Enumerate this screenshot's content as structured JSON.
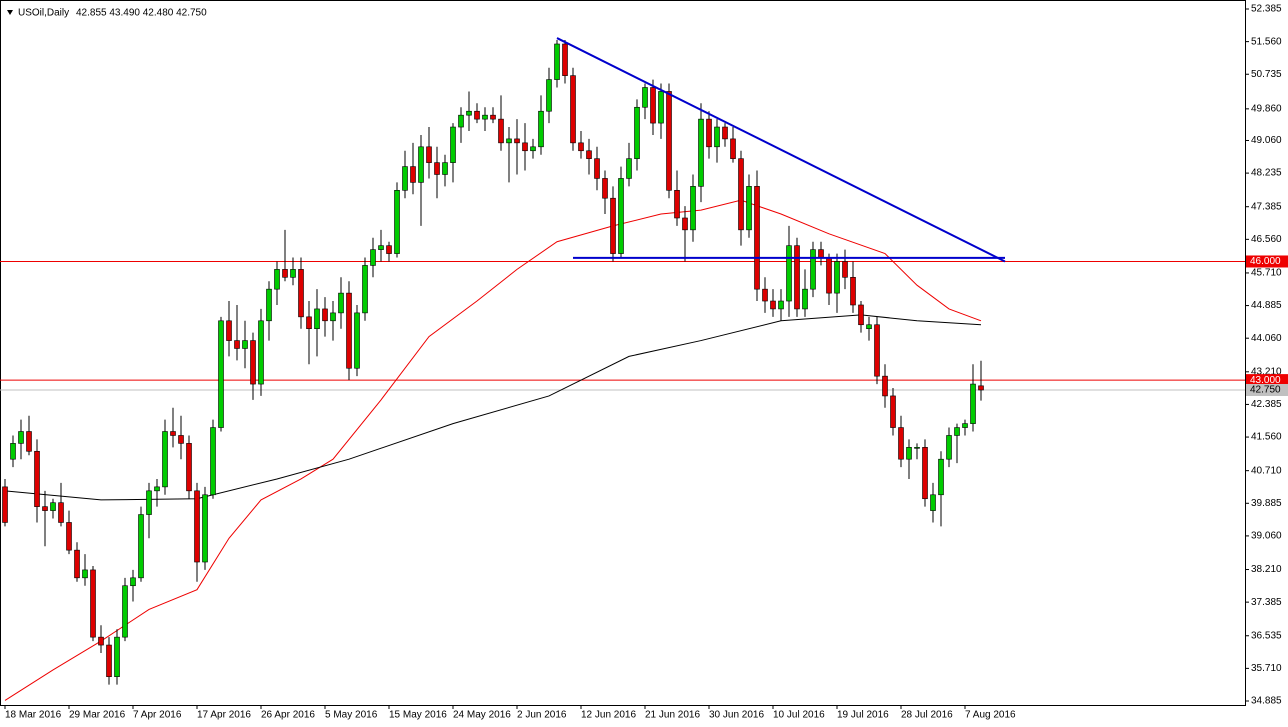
{
  "chart_data": {
    "type": "candlestick",
    "header": {
      "symbol": "USOil,Daily",
      "quote": "42.855 43.490 42.480 42.750"
    },
    "categories": [
      "18 Mar 2016",
      null,
      null,
      null,
      null,
      null,
      null,
      null,
      "29 Mar 2016",
      null,
      null,
      null,
      null,
      null,
      null,
      null,
      "7 Apr 2016",
      null,
      null,
      null,
      null,
      null,
      null,
      null,
      "17 Apr 2016",
      null,
      null,
      null,
      null,
      null,
      null,
      null,
      "26 Apr 2016",
      null,
      null,
      null,
      null,
      null,
      null,
      null,
      "5 May 2016",
      null,
      null,
      null,
      null,
      null,
      null,
      null,
      "15 May 2016",
      null,
      null,
      null,
      null,
      null,
      null,
      null,
      "24 May 2016",
      null,
      null,
      null,
      null,
      null,
      null,
      null,
      "2 Jun 2016",
      null,
      null,
      null,
      null,
      null,
      null,
      null,
      "12 Jun 2016",
      null,
      null,
      null,
      null,
      null,
      null,
      null,
      "21 Jun 2016",
      null,
      null,
      null,
      null,
      null,
      null,
      null,
      "30 Jun 2016",
      null,
      null,
      null,
      null,
      null,
      null,
      null,
      "10 Jul 2016",
      null,
      null,
      null,
      null,
      null,
      null,
      null,
      "19 Jul 2016",
      null,
      null,
      null,
      null,
      null,
      null,
      null,
      "28 Jul 2016",
      null,
      null,
      null,
      null,
      null,
      null,
      null,
      "7 Aug 2016",
      null,
      null
    ],
    "open": [
      40.3,
      41.0,
      41.4,
      41.7,
      41.2,
      39.8,
      39.7,
      39.9,
      39.4,
      38.7,
      38.0,
      38.2,
      36.5,
      36.3,
      35.5,
      36.5,
      37.8,
      38.0,
      39.6,
      40.2,
      40.3,
      41.7,
      41.6,
      41.4,
      40.2,
      38.4,
      40.1,
      41.8,
      44.5,
      44.0,
      43.8,
      44.0,
      42.9,
      44.5,
      45.3,
      45.8,
      45.6,
      45.8,
      44.6,
      44.3,
      44.8,
      44.5,
      44.7,
      45.2,
      43.3,
      44.7,
      45.9,
      46.3,
      46.4,
      46.2,
      47.8,
      48.4,
      48.0,
      48.9,
      48.5,
      48.2,
      48.5,
      49.4,
      49.7,
      49.8,
      49.6,
      49.7,
      49.6,
      49.0,
      49.1,
      49.0,
      48.8,
      48.9,
      49.8,
      50.6,
      51.5,
      50.7,
      49.0,
      48.8,
      48.6,
      48.1,
      47.6,
      46.2,
      48.1,
      48.6,
      49.9,
      50.4,
      49.5,
      50.3,
      47.8,
      47.1,
      46.8,
      47.9,
      49.6,
      48.9,
      49.4,
      49.1,
      48.6,
      46.8,
      47.9,
      45.3,
      45.0,
      44.8,
      45.0,
      46.4,
      44.8,
      45.3,
      46.3,
      46.1,
      45.2,
      46.0,
      45.6,
      44.9,
      44.3,
      44.4,
      43.1,
      42.6,
      41.8,
      41.0,
      41.3,
      41.3,
      39.7,
      40.1,
      41.0,
      41.6,
      41.8,
      41.9,
      42.855
    ],
    "high": [
      40.5,
      41.6,
      42.0,
      42.1,
      41.5,
      40.2,
      40.0,
      40.4,
      39.7,
      38.9,
      38.6,
      38.3,
      36.8,
      36.5,
      36.7,
      38.0,
      38.2,
      39.8,
      40.4,
      40.5,
      42.0,
      42.3,
      42.1,
      41.6,
      40.4,
      40.3,
      42.0,
      44.6,
      45.0,
      44.9,
      44.5,
      44.2,
      44.8,
      45.5,
      46.0,
      46.8,
      46.1,
      46.1,
      45.0,
      45.3,
      45.1,
      45.0,
      45.6,
      45.5,
      44.9,
      46.1,
      46.6,
      46.8,
      46.5,
      48.0,
      48.8,
      49.0,
      49.2,
      49.4,
      48.9,
      48.7,
      49.5,
      49.9,
      50.3,
      50.0,
      49.9,
      49.9,
      50.2,
      49.4,
      49.6,
      49.5,
      49.1,
      50.2,
      50.9,
      51.6,
      51.6,
      50.9,
      49.3,
      49.1,
      48.9,
      48.3,
      47.9,
      48.4,
      49.0,
      50.1,
      50.5,
      50.6,
      50.5,
      50.5,
      48.3,
      47.4,
      48.2,
      50.0,
      49.8,
      49.6,
      49.5,
      49.4,
      48.8,
      48.2,
      48.3,
      45.6,
      45.3,
      45.3,
      46.9,
      46.6,
      45.8,
      46.5,
      46.5,
      46.2,
      46.2,
      46.3,
      46.0,
      45.0,
      44.6,
      44.6,
      43.4,
      42.8,
      42.1,
      41.5,
      41.4,
      41.5,
      40.4,
      41.2,
      41.8,
      41.9,
      42.0,
      43.4,
      43.49
    ],
    "low": [
      39.3,
      40.8,
      41.0,
      41.1,
      39.4,
      38.8,
      39.5,
      39.3,
      38.6,
      37.9,
      37.8,
      36.4,
      36.1,
      35.3,
      35.3,
      36.4,
      37.4,
      37.9,
      39.0,
      39.8,
      40.1,
      41.3,
      41.0,
      40.0,
      37.9,
      38.2,
      40.0,
      41.7,
      43.6,
      43.5,
      43.3,
      42.5,
      42.6,
      44.0,
      44.9,
      45.5,
      45.4,
      44.3,
      43.4,
      43.6,
      44.1,
      44.0,
      44.3,
      43.0,
      43.1,
      44.5,
      45.6,
      46.0,
      46.0,
      46.1,
      47.6,
      47.7,
      46.9,
      48.1,
      47.6,
      47.9,
      48.0,
      49.0,
      49.3,
      49.5,
      49.3,
      49.5,
      48.8,
      48.0,
      48.2,
      48.3,
      48.6,
      48.7,
      49.5,
      50.4,
      50.5,
      48.8,
      48.6,
      48.2,
      47.8,
      47.2,
      46.0,
      46.1,
      47.9,
      48.3,
      49.6,
      49.2,
      49.1,
      47.6,
      46.9,
      46.0,
      46.5,
      47.5,
      48.6,
      48.5,
      48.9,
      48.5,
      46.4,
      46.6,
      45.0,
      44.7,
      44.6,
      44.5,
      44.6,
      44.6,
      44.6,
      45.1,
      45.9,
      44.9,
      44.7,
      45.3,
      44.7,
      44.2,
      44.0,
      42.9,
      42.3,
      41.6,
      40.8,
      40.5,
      41.0,
      39.8,
      39.4,
      39.3,
      40.8,
      40.9,
      41.6,
      41.7,
      42.48
    ],
    "close": [
      39.4,
      41.4,
      41.7,
      41.2,
      39.8,
      39.7,
      39.9,
      39.4,
      38.7,
      38.0,
      38.2,
      36.5,
      36.3,
      35.5,
      36.5,
      37.8,
      38.0,
      39.6,
      40.2,
      40.3,
      41.7,
      41.6,
      41.4,
      40.2,
      38.4,
      40.1,
      41.8,
      44.5,
      44.0,
      43.8,
      44.0,
      42.9,
      44.5,
      45.3,
      45.8,
      45.6,
      45.8,
      44.6,
      44.3,
      44.8,
      44.5,
      44.7,
      45.2,
      43.3,
      44.7,
      45.9,
      46.3,
      46.4,
      46.2,
      47.8,
      48.4,
      48.0,
      48.9,
      48.5,
      48.2,
      48.5,
      49.4,
      49.7,
      49.8,
      49.6,
      49.7,
      49.6,
      49.0,
      49.1,
      49.0,
      48.8,
      48.9,
      49.8,
      50.6,
      51.5,
      50.7,
      49.0,
      48.8,
      48.6,
      48.1,
      47.6,
      46.2,
      48.1,
      48.6,
      49.9,
      50.4,
      49.5,
      50.3,
      47.8,
      47.1,
      46.8,
      47.9,
      49.6,
      48.9,
      49.4,
      49.1,
      48.6,
      46.8,
      47.9,
      45.3,
      45.0,
      44.8,
      45.0,
      46.4,
      44.8,
      45.3,
      46.3,
      46.1,
      45.2,
      46.0,
      45.6,
      44.9,
      44.4,
      44.4,
      43.1,
      42.6,
      41.8,
      41.0,
      41.3,
      41.3,
      40.0,
      40.1,
      41.0,
      41.6,
      41.8,
      41.9,
      42.9,
      42.75
    ],
    "up_color": "#00cc00",
    "down_color": "#dd0000",
    "lines": [
      {
        "color": "#ee0000",
        "x": [
          0,
          6,
          12,
          18,
          24,
          28,
          32,
          37,
          41,
          47,
          53,
          59,
          64,
          69,
          76,
          82,
          87,
          92,
          97,
          103,
          110,
          114,
          118,
          122
        ],
        "values": [
          34.9,
          35.67,
          36.4,
          37.2,
          37.7,
          39.0,
          39.97,
          40.5,
          41.0,
          42.5,
          44.1,
          45.0,
          45.8,
          46.5,
          46.9,
          47.2,
          47.3,
          47.55,
          47.2,
          46.7,
          46.2,
          45.4,
          44.8,
          44.5
        ]
      },
      {
        "color": "#000000",
        "x": [
          0,
          12,
          24,
          34,
          43,
          56,
          68,
          78,
          87,
          97,
          107,
          114,
          122
        ],
        "values": [
          40.2,
          39.97,
          40.0,
          40.5,
          41.0,
          41.9,
          42.6,
          43.6,
          44.0,
          44.5,
          44.65,
          44.5,
          44.4
        ]
      }
    ],
    "trendlines": [
      {
        "color": "#0000cc",
        "x": [
          69,
          125
        ],
        "values": [
          51.65,
          46.0
        ]
      },
      {
        "color": "#0000cc",
        "x": [
          71,
          125
        ],
        "values": [
          46.09,
          46.09
        ]
      }
    ],
    "levels": [
      {
        "value": 46,
        "label": "46.000",
        "color": "#ee0000"
      },
      {
        "value": 43,
        "label": "43.000",
        "color": "#ee0000"
      }
    ],
    "current": {
      "value": 42.75,
      "label": "42.750",
      "color": "#c0c0c0"
    },
    "ylim": [
      34.885,
      52.385
    ],
    "yticks": [
      52.385,
      {
        "value": 51.56,
        "label": "51.560"
      },
      50.735,
      {
        "value": 49.86,
        "label": "49.860"
      },
      {
        "value": 49.06,
        "label": "49.060"
      },
      48.235,
      47.385,
      {
        "value": 46.56,
        "label": "46.560"
      },
      {
        "value": 45.71,
        "label": "45.710"
      },
      44.885,
      {
        "value": 44.06,
        "label": "44.060"
      },
      {
        "value": 43.21,
        "label": "43.210"
      },
      42.385,
      {
        "value": 41.56,
        "label": "41.560"
      },
      {
        "value": 40.71,
        "label": "40.710"
      },
      39.885,
      {
        "value": 39.06,
        "label": "39.060"
      },
      {
        "value": 38.21,
        "label": "38.210"
      },
      37.385,
      36.535,
      {
        "value": 35.71,
        "label": "35.710"
      },
      34.885
    ]
  }
}
